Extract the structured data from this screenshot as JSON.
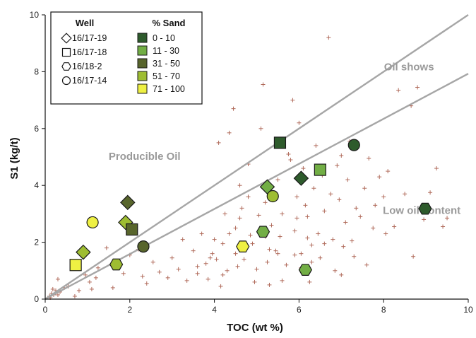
{
  "chart_data": {
    "type": "scatter",
    "title": "",
    "xlabel": "TOC (wt %)",
    "ylabel": "S1 (kg/t)",
    "xlim": [
      0,
      10
    ],
    "ylim": [
      0,
      10
    ],
    "x_ticks": [
      "0",
      "2",
      "4",
      "6",
      "8",
      "10"
    ],
    "y_ticks": [
      "0",
      "2",
      "4",
      "6",
      "8",
      "10"
    ],
    "grid": false,
    "lines": [
      {
        "name": "Oil shows",
        "x": [
          0,
          10
        ],
        "y": [
          0,
          10
        ],
        "color": "#a6a6a6"
      },
      {
        "name": "",
        "x": [
          0,
          10
        ],
        "y": [
          0,
          7.93
        ],
        "color": "#a6a6a6"
      }
    ],
    "annotations": [
      {
        "text": "Oil shows",
        "x": 8.6,
        "y": 8.05
      },
      {
        "text": "Producible Oil",
        "x": 2.35,
        "y": 4.9
      },
      {
        "text": "Low oil content",
        "x": 8.9,
        "y": 3.0
      }
    ],
    "legend": {
      "position": "top-left",
      "well_header": "Well",
      "sand_header": "% Sand",
      "wells": [
        {
          "label": "16/17-19",
          "marker": "diamond"
        },
        {
          "label": "16/17-18",
          "marker": "square"
        },
        {
          "label": "16/18-2",
          "marker": "hexagon"
        },
        {
          "label": "16/17-14",
          "marker": "circle"
        }
      ],
      "sand_classes": [
        {
          "label": "0 - 10",
          "color": "#2e5b2c"
        },
        {
          "label": "11 - 30",
          "color": "#72ae45"
        },
        {
          "label": "31 - 50",
          "color": "#58652c"
        },
        {
          "label": "51 - 70",
          "color": "#9ebd32"
        },
        {
          "label": "71 - 100",
          "color": "#eef043"
        }
      ]
    },
    "series": [
      {
        "name": "16/17-19",
        "marker": "diamond",
        "points": [
          {
            "x": 0.9,
            "y": 1.65,
            "sand": "51 - 70"
          },
          {
            "x": 1.9,
            "y": 2.7,
            "sand": "51 - 70"
          },
          {
            "x": 1.95,
            "y": 3.4,
            "sand": "31 - 50"
          },
          {
            "x": 5.25,
            "y": 3.95,
            "sand": "11 - 30"
          },
          {
            "x": 6.05,
            "y": 4.25,
            "sand": "0 - 10"
          }
        ]
      },
      {
        "name": "16/17-18",
        "marker": "square",
        "points": [
          {
            "x": 0.72,
            "y": 1.2,
            "sand": "71 - 100"
          },
          {
            "x": 2.05,
            "y": 2.45,
            "sand": "31 - 50"
          },
          {
            "x": 5.55,
            "y": 5.5,
            "sand": "0 - 10"
          },
          {
            "x": 6.5,
            "y": 4.55,
            "sand": "11 - 30"
          }
        ]
      },
      {
        "name": "16/18-2",
        "marker": "hexagon",
        "points": [
          {
            "x": 1.68,
            "y": 1.22,
            "sand": "51 - 70"
          },
          {
            "x": 4.67,
            "y": 1.85,
            "sand": "71 - 100"
          },
          {
            "x": 5.15,
            "y": 2.37,
            "sand": "11 - 30"
          },
          {
            "x": 6.15,
            "y": 1.03,
            "sand": "11 - 30"
          },
          {
            "x": 8.98,
            "y": 3.18,
            "sand": "0 - 10"
          }
        ]
      },
      {
        "name": "16/17-14",
        "marker": "circle",
        "points": [
          {
            "x": 1.12,
            "y": 2.7,
            "sand": "71 - 100"
          },
          {
            "x": 2.32,
            "y": 1.85,
            "sand": "31 - 50"
          },
          {
            "x": 5.38,
            "y": 3.62,
            "sand": "51 - 70"
          },
          {
            "x": 7.3,
            "y": 5.42,
            "sand": "0 - 10"
          }
        ]
      }
    ],
    "background_samples": {
      "marker": "plus",
      "color": "#b06a5a",
      "points": [
        [
          0.1,
          0.1
        ],
        [
          0.15,
          0.2
        ],
        [
          0.2,
          0.15
        ],
        [
          0.25,
          0.3
        ],
        [
          0.3,
          0.7
        ],
        [
          0.35,
          0.25
        ],
        [
          0.45,
          0.4
        ],
        [
          0.12,
          0.05
        ],
        [
          0.18,
          0.35
        ],
        [
          0.3,
          0.15
        ],
        [
          0.55,
          0.45
        ],
        [
          0.7,
          0.1
        ],
        [
          0.8,
          0.3
        ],
        [
          0.95,
          0.85
        ],
        [
          1.05,
          0.6
        ],
        [
          1.1,
          0.35
        ],
        [
          1.2,
          0.75
        ],
        [
          1.25,
          1.1
        ],
        [
          1.45,
          1.8
        ],
        [
          1.6,
          0.4
        ],
        [
          1.85,
          0.9
        ],
        [
          2.0,
          1.55
        ],
        [
          2.2,
          1.75
        ],
        [
          2.3,
          0.8
        ],
        [
          2.4,
          0.55
        ],
        [
          2.55,
          1.3
        ],
        [
          2.7,
          0.95
        ],
        [
          2.9,
          0.75
        ],
        [
          3.0,
          1.45
        ],
        [
          3.15,
          1.05
        ],
        [
          3.25,
          2.1
        ],
        [
          3.35,
          0.65
        ],
        [
          3.5,
          1.7
        ],
        [
          3.6,
          1.15
        ],
        [
          3.7,
          2.3
        ],
        [
          3.8,
          1.25
        ],
        [
          3.85,
          0.7
        ],
        [
          3.95,
          1.6
        ],
        [
          4.0,
          2.1
        ],
        [
          4.05,
          1.4
        ],
        [
          4.15,
          0.45
        ],
        [
          4.2,
          1.95
        ],
        [
          4.25,
          3.0
        ],
        [
          4.35,
          5.85
        ],
        [
          4.45,
          6.7
        ],
        [
          4.1,
          5.5
        ],
        [
          4.3,
          1.0
        ],
        [
          4.5,
          2.5
        ],
        [
          4.55,
          1.15
        ],
        [
          4.6,
          4.0
        ],
        [
          4.65,
          3.2
        ],
        [
          4.7,
          1.4
        ],
        [
          4.8,
          4.75
        ],
        [
          4.85,
          2.25
        ],
        [
          4.95,
          0.6
        ],
        [
          5.0,
          1.05
        ],
        [
          5.05,
          2.95
        ],
        [
          5.1,
          6.0
        ],
        [
          5.15,
          7.55
        ],
        [
          5.2,
          3.4
        ],
        [
          5.25,
          1.3
        ],
        [
          5.3,
          0.5
        ],
        [
          5.35,
          2.6
        ],
        [
          5.45,
          1.7
        ],
        [
          5.5,
          4.2
        ],
        [
          5.55,
          2.2
        ],
        [
          5.6,
          3.0
        ],
        [
          5.7,
          1.2
        ],
        [
          5.75,
          5.1
        ],
        [
          5.8,
          4.9
        ],
        [
          5.85,
          7.0
        ],
        [
          5.9,
          2.4
        ],
        [
          5.95,
          3.6
        ],
        [
          6.0,
          6.2
        ],
        [
          6.05,
          1.6
        ],
        [
          6.1,
          4.6
        ],
        [
          6.15,
          3.3
        ],
        [
          6.2,
          2.9
        ],
        [
          6.25,
          0.6
        ],
        [
          6.3,
          1.9
        ],
        [
          6.35,
          3.9
        ],
        [
          6.4,
          5.4
        ],
        [
          6.45,
          2.3
        ],
        [
          6.5,
          1.45
        ],
        [
          6.55,
          4.35
        ],
        [
          6.6,
          3.1
        ],
        [
          6.7,
          9.2
        ],
        [
          6.75,
          3.7
        ],
        [
          6.8,
          2.1
        ],
        [
          6.85,
          1.0
        ],
        [
          6.9,
          4.7
        ],
        [
          6.95,
          3.5
        ],
        [
          7.0,
          5.05
        ],
        [
          7.05,
          1.85
        ],
        [
          7.1,
          2.7
        ],
        [
          7.15,
          4.2
        ],
        [
          7.2,
          5.55
        ],
        [
          7.25,
          2.05
        ],
        [
          7.3,
          1.5
        ],
        [
          7.35,
          3.2
        ],
        [
          7.45,
          2.9
        ],
        [
          7.55,
          3.9
        ],
        [
          7.65,
          4.95
        ],
        [
          7.75,
          2.5
        ],
        [
          7.8,
          3.3
        ],
        [
          7.9,
          4.3
        ],
        [
          8.0,
          3.6
        ],
        [
          8.05,
          2.3
        ],
        [
          8.1,
          4.5
        ],
        [
          8.25,
          2.55
        ],
        [
          8.35,
          7.35
        ],
        [
          8.5,
          3.7
        ],
        [
          8.65,
          6.8
        ],
        [
          8.8,
          7.45
        ],
        [
          8.95,
          2.8
        ],
        [
          9.1,
          3.75
        ],
        [
          9.25,
          4.6
        ],
        [
          9.4,
          2.55
        ],
        [
          9.5,
          2.85
        ],
        [
          8.7,
          1.5
        ],
        [
          6.3,
          1.3
        ],
        [
          6.05,
          1.1
        ],
        [
          5.9,
          1.55
        ],
        [
          5.6,
          0.65
        ],
        [
          5.3,
          1.75
        ],
        [
          4.9,
          1.95
        ],
        [
          4.5,
          1.6
        ],
        [
          4.2,
          0.85
        ],
        [
          3.9,
          1.45
        ],
        [
          3.6,
          0.9
        ],
        [
          7.6,
          1.2
        ],
        [
          7.0,
          0.85
        ],
        [
          6.6,
          1.95
        ],
        [
          6.2,
          2.15
        ],
        [
          5.95,
          2.85
        ],
        [
          5.5,
          1.6
        ],
        [
          5.2,
          2.2
        ],
        [
          4.8,
          3.6
        ],
        [
          4.6,
          2.85
        ],
        [
          4.35,
          2.3
        ]
      ]
    }
  }
}
